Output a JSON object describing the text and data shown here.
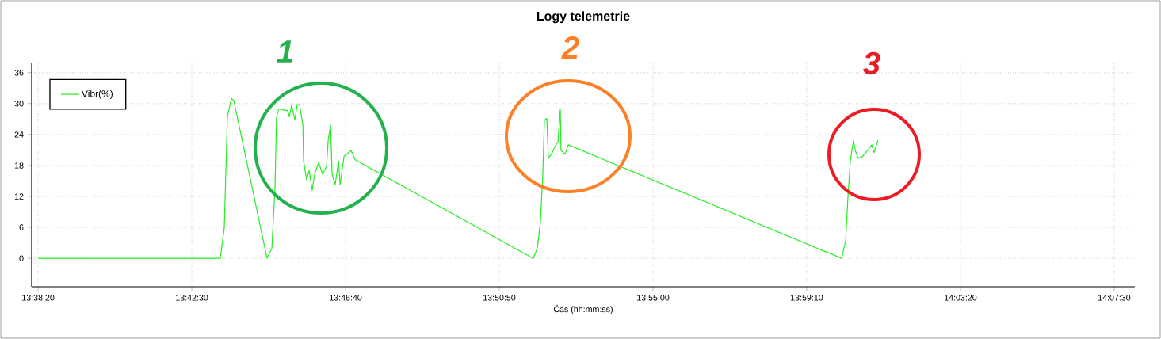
{
  "chart_data": {
    "type": "line",
    "title": "Logy telemetrie",
    "xlabel": "Čas (hh:mm:ss)",
    "x": [
      13.6389,
      13.7212,
      13.723,
      13.7244,
      13.7262,
      13.7273,
      13.7423,
      13.7445,
      13.7459,
      13.7466,
      13.7477,
      13.7517,
      13.7524,
      13.7534,
      13.7549,
      13.7559,
      13.757,
      13.7585,
      13.7588,
      13.7602,
      13.7613,
      13.7627,
      13.7638,
      13.7656,
      13.7674,
      13.7692,
      13.7699,
      13.771,
      13.7717,
      13.7731,
      13.7746,
      13.7753,
      13.7771,
      13.7803,
      13.7821,
      13.8626,
      13.8644,
      13.8658,
      13.8669,
      13.8676,
      13.8687,
      13.8694,
      13.8712,
      13.8723,
      13.8737,
      13.8748,
      13.8751,
      13.8769,
      13.8784,
      14.0019,
      14.0037,
      14.0047,
      14.0058,
      14.0072,
      14.0083,
      14.0094,
      14.0112,
      14.013,
      14.0155,
      14.0165,
      14.0183
    ],
    "series": [
      {
        "name": "Vibr(%)",
        "color": "#22ee22",
        "values": [
          0,
          0,
          6,
          27.5,
          31,
          30.6,
          0,
          2,
          13.7,
          27.5,
          29,
          28.6,
          27.4,
          29.7,
          26.8,
          29.8,
          29.8,
          25.8,
          18.9,
          15.2,
          17.1,
          13.2,
          16.3,
          18.6,
          16.3,
          17.8,
          22.8,
          25.8,
          16.3,
          14.3,
          18.9,
          14.3,
          19.8,
          20.9,
          19.1,
          0,
          2,
          7,
          16.3,
          26.8,
          27.1,
          19.4,
          20.5,
          21.7,
          22.5,
          28.9,
          20.9,
          20.2,
          22,
          0,
          3.5,
          11.7,
          18.9,
          22.8,
          20.6,
          19.4,
          19.7,
          20.6,
          22,
          20.5,
          22.9
        ]
      }
    ],
    "xlim": [
      13.636,
      14.1343
    ],
    "ylim": [
      -5.5,
      37.8
    ],
    "xticks": [
      {
        "value": 13.63889,
        "label": "13:38:20"
      },
      {
        "value": 13.70833,
        "label": "13:42:30"
      },
      {
        "value": 13.77778,
        "label": "13:46:40"
      },
      {
        "value": 13.84722,
        "label": "13:50:50"
      },
      {
        "value": 13.91667,
        "label": "13:55:00"
      },
      {
        "value": 13.98611,
        "label": "13:59:10"
      },
      {
        "value": 14.05556,
        "label": "14:03:20"
      },
      {
        "value": 14.125,
        "label": "14:07:30"
      }
    ],
    "yticks": [
      0,
      6,
      12,
      18,
      24,
      30,
      36
    ],
    "grid": true,
    "legend": "top left",
    "annotations": [
      "1",
      "2",
      "3"
    ]
  }
}
